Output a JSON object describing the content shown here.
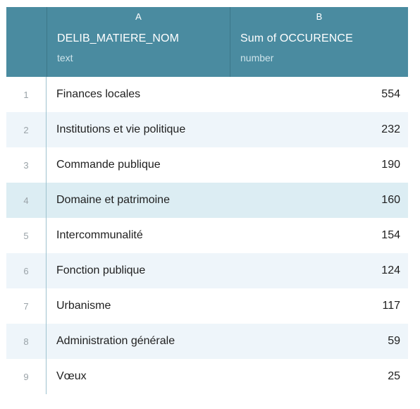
{
  "table": {
    "columns": [
      {
        "letter": "A",
        "name": "DELIB_MATIERE_NOM",
        "type": "text"
      },
      {
        "letter": "B",
        "name": "Sum of OCCURENCE",
        "type": "number"
      }
    ],
    "rows": [
      {
        "num": "1",
        "label": "Finances locales",
        "value": "554"
      },
      {
        "num": "2",
        "label": "Institutions et vie politique",
        "value": "232"
      },
      {
        "num": "3",
        "label": "Commande publique",
        "value": "190"
      },
      {
        "num": "4",
        "label": "Domaine et patrimoine",
        "value": "160"
      },
      {
        "num": "5",
        "label": "Intercommunalité",
        "value": "154"
      },
      {
        "num": "6",
        "label": "Fonction publique",
        "value": "124"
      },
      {
        "num": "7",
        "label": "Urbanisme",
        "value": "117"
      },
      {
        "num": "8",
        "label": "Administration générale",
        "value": "59"
      },
      {
        "num": "9",
        "label": "Vœux",
        "value": "25"
      }
    ]
  }
}
